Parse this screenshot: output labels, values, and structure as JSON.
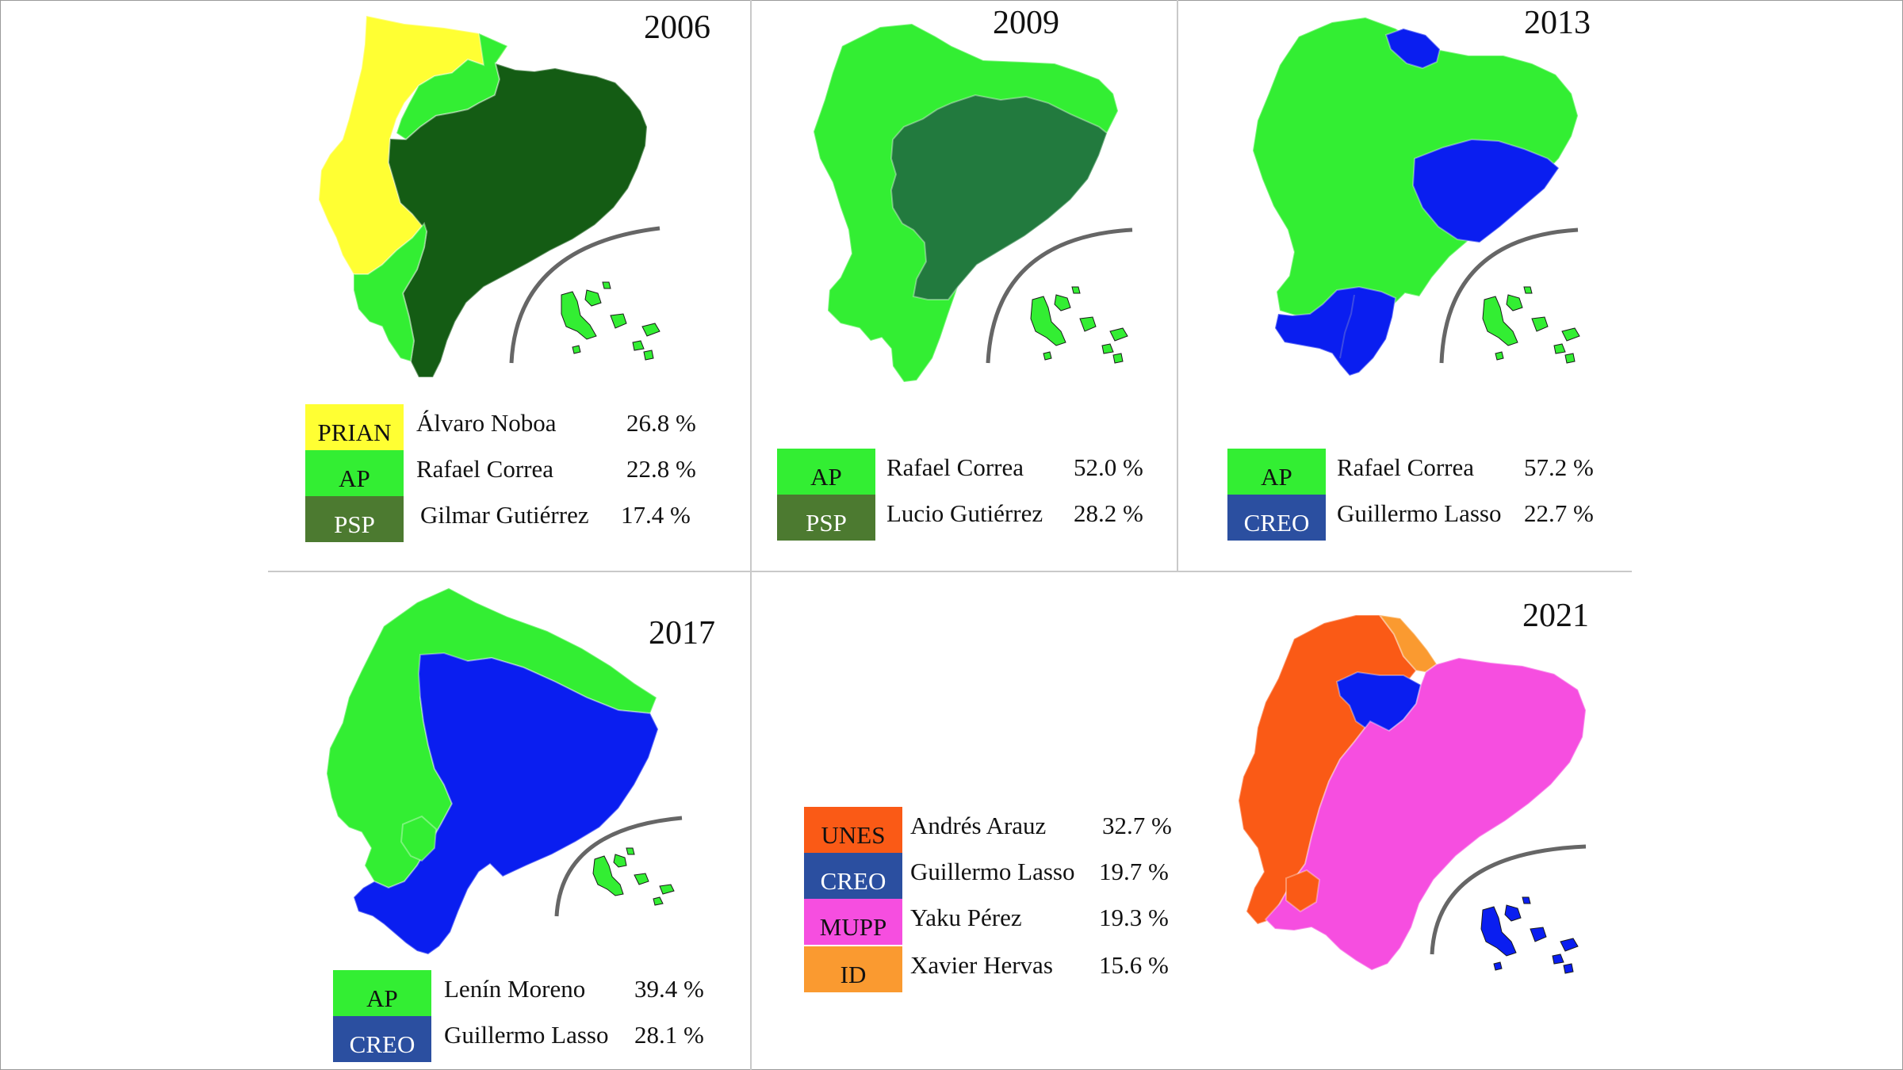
{
  "colors": {
    "prian": "#ffff33",
    "ap": "#33ee33",
    "psp": "#4c7a30",
    "psp_2006_region": "#145c14",
    "psp_2009_region": "#227a3e",
    "creo": "#2b4fa0",
    "creo_region": "#0a1ef0",
    "unes": "#fa5a16",
    "mupp": "#f64ee0",
    "id": "#fa9a30"
  },
  "panels": [
    {
      "year": "2006",
      "legend": [
        {
          "party": "PRIAN",
          "candidate": "Álvaro Noboa",
          "percent": "26.8 %",
          "color": "#ffff33"
        },
        {
          "party": "AP",
          "candidate": "Rafael Correa",
          "percent": "22.8 %",
          "color": "#33ee33"
        },
        {
          "party": "PSP",
          "candidate": "Gilmar Gutiérrez",
          "percent": "17.4 %",
          "color": "#4c7a30"
        }
      ]
    },
    {
      "year": "2009",
      "legend": [
        {
          "party": "AP",
          "candidate": "Rafael Correa",
          "percent": "52.0 %",
          "color": "#33ee33"
        },
        {
          "party": "PSP",
          "candidate": "Lucio Gutiérrez",
          "percent": "28.2 %",
          "color": "#4c7a30"
        }
      ]
    },
    {
      "year": "2013",
      "legend": [
        {
          "party": "AP",
          "candidate": "Rafael Correa",
          "percent": "57.2 %",
          "color": "#33ee33"
        },
        {
          "party": "CREO",
          "candidate": "Guillermo Lasso",
          "percent": "22.7 %",
          "color": "#2b4fa0"
        }
      ]
    },
    {
      "year": "2017",
      "legend": [
        {
          "party": "AP",
          "candidate": "Lenín Moreno",
          "percent": "39.4 %",
          "color": "#33ee33"
        },
        {
          "party": "CREO",
          "candidate": "Guillermo Lasso",
          "percent": "28.1 %",
          "color": "#2b4fa0"
        }
      ]
    },
    {
      "year": "2021",
      "legend": [
        {
          "party": "UNES",
          "candidate": "Andrés Arauz",
          "percent": "32.7 %",
          "color": "#fa5a16"
        },
        {
          "party": "CREO",
          "candidate": "Guillermo Lasso",
          "percent": "19.7 %",
          "color": "#2b4fa0"
        },
        {
          "party": "MUPP",
          "candidate": "Yaku Pérez",
          "percent": "19.3 %",
          "color": "#f64ee0"
        },
        {
          "party": "ID",
          "candidate": "Xavier Hervas",
          "percent": "15.6 %",
          "color": "#fa9a30"
        }
      ]
    }
  ]
}
